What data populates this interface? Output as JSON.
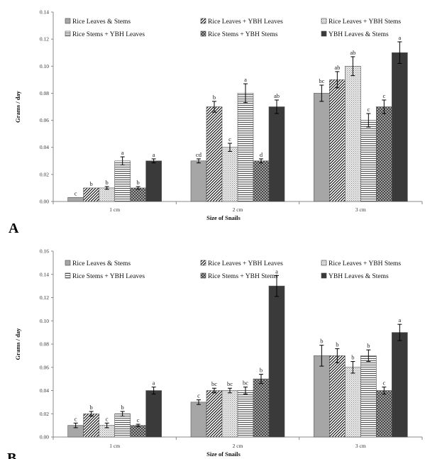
{
  "colors": {
    "s0": "#a6a6a6",
    "s1": "#ffffff",
    "s2": "#e6e6e6",
    "s3": "#d0d0d0",
    "s4": "#7a7a7a",
    "s5": "#3a3a3a",
    "axis": "#888888"
  },
  "chart_data": [
    {
      "type": "bar",
      "panel_label": "A",
      "xlabel": "Size of Snails",
      "ylabel": "Grams / day",
      "categories": [
        "1 cm",
        "2 cm",
        "3 cm"
      ],
      "ylim": [
        0,
        0.14
      ],
      "yticks": [
        "0.00",
        "0.02",
        "0.04",
        "0.06",
        "0.08",
        "0.10",
        "0.12",
        "0.14"
      ],
      "legend_position": "top",
      "series": [
        {
          "name": "Rice Leaves & Stems",
          "values": [
            0.003,
            0.03,
            0.08
          ],
          "errors": [
            0,
            0.0015,
            0.006
          ],
          "letters": [
            "c",
            "cd",
            "bc"
          ]
        },
        {
          "name": "Rice Leaves + YBH Leaves",
          "values": [
            0.01,
            0.07,
            0.09
          ],
          "errors": [
            0,
            0.004,
            0.006
          ],
          "letters": [
            "b",
            "b",
            "ab"
          ]
        },
        {
          "name": "Rice Leaves + YBH Stems",
          "values": [
            0.01,
            0.04,
            0.1
          ],
          "errors": [
            0.001,
            0.003,
            0.007
          ],
          "letters": [
            "b",
            "c",
            "ab"
          ]
        },
        {
          "name": "Rice Stems + YBH Leaves",
          "values": [
            0.03,
            0.08,
            0.06
          ],
          "errors": [
            0.003,
            0.007,
            0.005
          ],
          "letters": [
            "a",
            "a",
            "c"
          ]
        },
        {
          "name": "Rice Stems + YBH Stems",
          "values": [
            0.01,
            0.03,
            0.07
          ],
          "errors": [
            0.001,
            0.0015,
            0.005
          ],
          "letters": [
            "b",
            "d",
            "c"
          ]
        },
        {
          "name": "YBH Leaves & Stems",
          "values": [
            0.03,
            0.07,
            0.11
          ],
          "errors": [
            0.0015,
            0.005,
            0.008
          ],
          "letters": [
            "a",
            "ab",
            "a"
          ]
        }
      ]
    },
    {
      "type": "bar",
      "panel_label": "B",
      "xlabel": "Size of Snails",
      "ylabel": "Grams / day",
      "categories": [
        "1 cm",
        "2 cm",
        "3 cm"
      ],
      "ylim": [
        0,
        0.16
      ],
      "yticks": [
        "0.00",
        "0.02",
        "0.04",
        "0.06",
        "0.08",
        "0.10",
        "0.12",
        "0.14",
        "0.16"
      ],
      "legend_position": "top",
      "series": [
        {
          "name": "Rice Leaves & Stems",
          "values": [
            0.01,
            0.03,
            0.07
          ],
          "errors": [
            0.002,
            0.002,
            0.009
          ],
          "letters": [
            "c",
            "c",
            "b"
          ]
        },
        {
          "name": "Rice Leaves + YBH Leaves",
          "values": [
            0.02,
            0.04,
            0.07
          ],
          "errors": [
            0.002,
            0.002,
            0.006
          ],
          "letters": [
            "b",
            "bc",
            "b"
          ]
        },
        {
          "name": "Rice Leaves + YBH Stems",
          "values": [
            0.01,
            0.04,
            0.06
          ],
          "errors": [
            0.002,
            0.002,
            0.005
          ],
          "letters": [
            "c",
            "bc",
            "b"
          ]
        },
        {
          "name": "Rice Stems + YBH Leaves",
          "values": [
            0.02,
            0.04,
            0.07
          ],
          "errors": [
            0.002,
            0.003,
            0.005
          ],
          "letters": [
            "b",
            "bc",
            "b"
          ]
        },
        {
          "name": "Rice Stems + YBH Stems",
          "values": [
            0.01,
            0.05,
            0.04
          ],
          "errors": [
            0.001,
            0.004,
            0.003
          ],
          "letters": [
            "c",
            "b",
            "c"
          ]
        },
        {
          "name": "YBH Leaves & Stems",
          "values": [
            0.04,
            0.13,
            0.09
          ],
          "errors": [
            0.003,
            0.009,
            0.007
          ],
          "letters": [
            "a",
            "a",
            "a"
          ]
        }
      ]
    }
  ]
}
